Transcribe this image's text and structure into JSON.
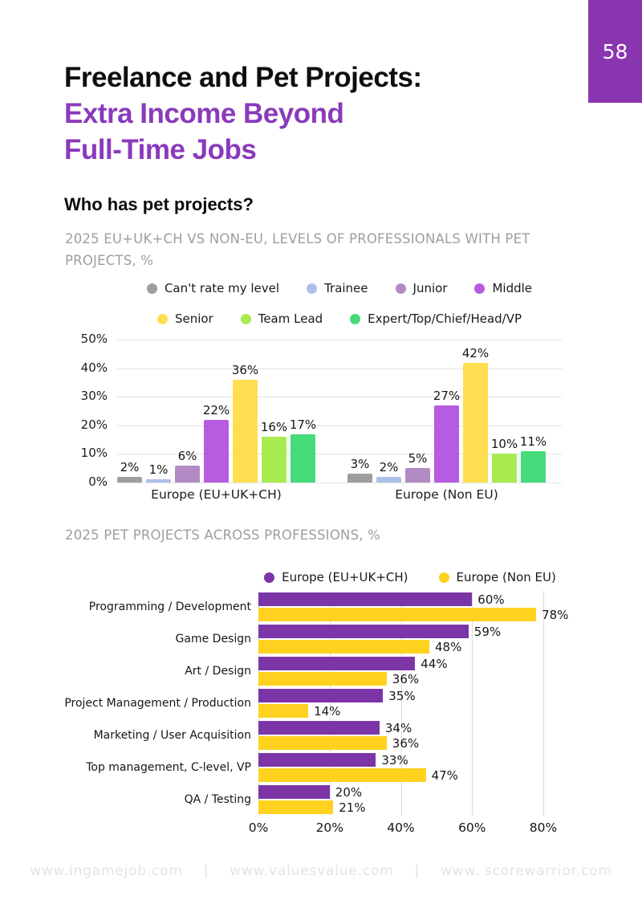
{
  "page": {
    "number": "58"
  },
  "header": {
    "title_line1": "Freelance and Pet Projects:",
    "title_line2": "Extra Income Beyond",
    "title_line3": "Full-Time Jobs",
    "subtitle": "Who has pet projects?"
  },
  "colors": {
    "badge_purple": "#8935AF",
    "title_purple": "#8A3ABB"
  },
  "chart_data": [
    {
      "type": "bar",
      "title": "2025 EU+UK+CH VS NON-EU, LEVELS OF PROFESSIONALS WITH PET PROJECTS, %",
      "categories": [
        "Europe (EU+UK+CH)",
        "Europe (Non EU)"
      ],
      "series": [
        {
          "name": "Can't rate my level",
          "color": "#9E9E9E",
          "values": [
            2,
            3
          ]
        },
        {
          "name": "Trainee",
          "color": "#AEC0E8",
          "values": [
            1,
            2
          ]
        },
        {
          "name": "Junior",
          "color": "#B28BC4",
          "values": [
            6,
            5
          ]
        },
        {
          "name": "Middle",
          "color": "#B75CE1",
          "values": [
            22,
            27
          ]
        },
        {
          "name": "Senior",
          "color": "#FFDE52",
          "values": [
            36,
            42
          ]
        },
        {
          "name": "Team Lead",
          "color": "#A7EB4F",
          "values": [
            16,
            10
          ]
        },
        {
          "name": "Expert/Top/Chief/Head/VP",
          "color": "#45DB7B",
          "values": [
            17,
            11
          ]
        }
      ],
      "ylim": [
        0,
        50
      ],
      "yticks": [
        "50%",
        "40%",
        "30%",
        "20%",
        "10%",
        "0%"
      ],
      "grid": "horizontal",
      "legend_position": "top"
    },
    {
      "type": "bar-horizontal",
      "title": "2025 PET PROJECTS ACROSS PROFESSIONS, %",
      "categories": [
        "Programming / Development",
        "Game Design",
        "Art / Design",
        "Project Management / Production",
        "Marketing / User Acquisition",
        "Top management, C-level, VP",
        "QA / Testing"
      ],
      "series": [
        {
          "name": "Europe (EU+UK+CH)",
          "color": "#7C35A6",
          "values": [
            60,
            59,
            44,
            35,
            34,
            33,
            20
          ]
        },
        {
          "name": "Europe (Non EU)",
          "color": "#FFD21F",
          "values": [
            78,
            48,
            36,
            14,
            36,
            47,
            21
          ]
        }
      ],
      "xlim": [
        0,
        80
      ],
      "xticks": [
        "0%",
        "20%",
        "40%",
        "60%",
        "80%"
      ],
      "grid": "vertical",
      "legend_position": "top"
    }
  ],
  "footer": {
    "links": [
      "www.ingamejob.com",
      "www.valuesvalue.com",
      "www. scorewarrior.com"
    ],
    "separator": "|"
  }
}
